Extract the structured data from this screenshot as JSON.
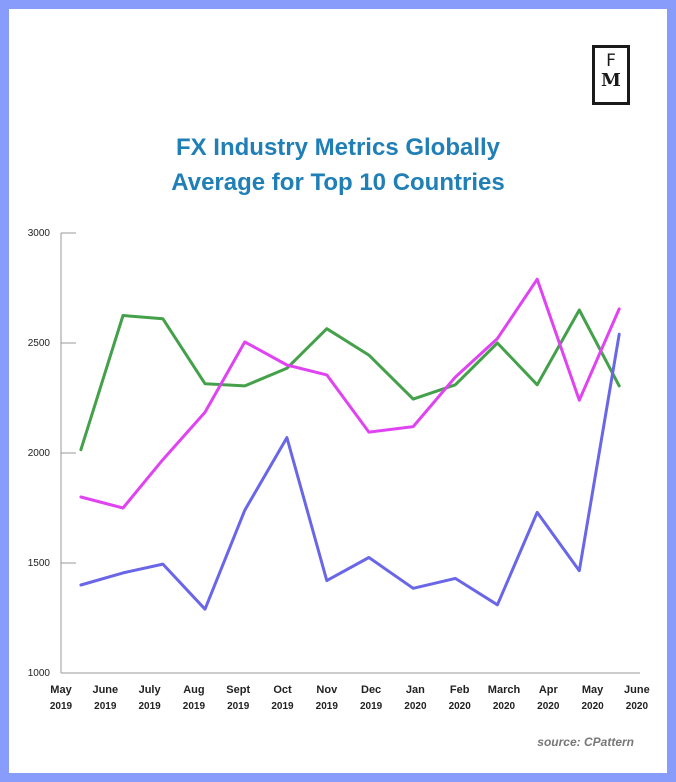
{
  "logo": {
    "top": "F",
    "bottom": "M"
  },
  "source": "source: CPattern",
  "colors": {
    "frame": "#879cfb",
    "title": "#1f7fb6",
    "axis": "#9a9a9a"
  },
  "chart_data": {
    "type": "line",
    "title": [
      "FX Industry Metrics Globally",
      "Average for Top 10 Countries"
    ],
    "categories": [
      [
        "May",
        "2019"
      ],
      [
        "June",
        "2019"
      ],
      [
        "July",
        "2019"
      ],
      [
        "Aug",
        "2019"
      ],
      [
        "Sept",
        "2019"
      ],
      [
        "Oct",
        "2019"
      ],
      [
        "Nov",
        "2019"
      ],
      [
        "Dec",
        "2019"
      ],
      [
        "Jan",
        "2020"
      ],
      [
        "Feb",
        "2020"
      ],
      [
        "March",
        "2020"
      ],
      [
        "Apr",
        "2020"
      ],
      [
        "May",
        "2020"
      ],
      [
        "June",
        "2020"
      ]
    ],
    "yticks": [
      "3000",
      "2500",
      "2000",
      "1500",
      "1000"
    ],
    "ylim": [
      1000,
      3000
    ],
    "grid": false,
    "legend": "none",
    "series": [
      {
        "color": "#44a04a",
        "x": [
          0.45,
          1.4,
          2.3,
          3.25,
          4.15,
          5.1,
          6.0,
          6.95,
          7.95,
          8.9,
          9.85,
          10.75,
          11.7,
          12.6
        ],
        "values": [
          2015,
          2625,
          2610,
          2315,
          2305,
          2385,
          2565,
          2445,
          2245,
          2310,
          2500,
          2310,
          2650,
          2305
        ]
      },
      {
        "color": "#e043f2",
        "x": [
          0.45,
          1.4,
          2.3,
          3.25,
          4.15,
          5.1,
          6.0,
          6.95,
          7.95,
          8.9,
          9.85,
          10.75,
          11.7,
          12.6
        ],
        "values": [
          1800,
          1750,
          1970,
          2185,
          2505,
          2400,
          2355,
          2095,
          2120,
          2345,
          2520,
          2790,
          2240,
          2655
        ]
      },
      {
        "color": "#6a66e8",
        "x": [
          0.45,
          1.4,
          2.3,
          3.25,
          4.15,
          5.1,
          6.0,
          6.95,
          7.95,
          8.9,
          9.85,
          10.75,
          11.7,
          12.6
        ],
        "values": [
          1400,
          1455,
          1495,
          1290,
          1740,
          2070,
          1420,
          1525,
          1385,
          1430,
          1310,
          1730,
          1465,
          2540
        ]
      }
    ]
  }
}
